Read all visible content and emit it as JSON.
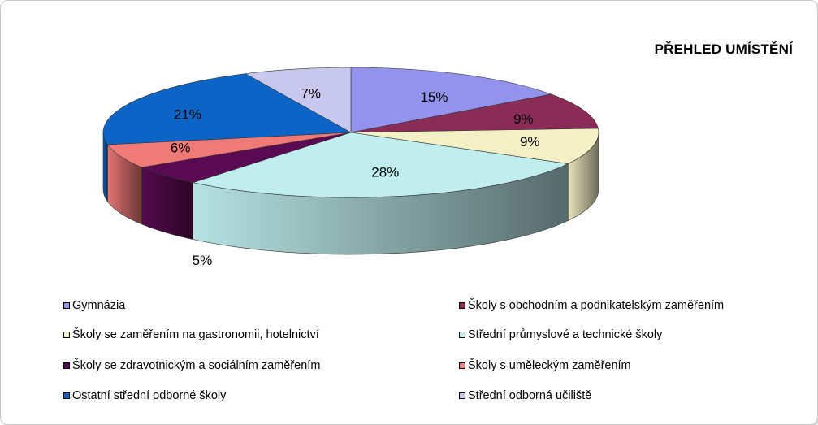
{
  "chart_data": {
    "type": "pie",
    "title": "PŘEHLED UMÍSTĚNÍ",
    "categories": [
      "Gymnázia",
      "Školy s obchodním a podnikatelským zaměřením",
      "Školy se zaměřením na gastronomii, hotelnictví",
      "Střední průmyslové a technické školy",
      "Školy se zdravotnickým a sociálním zaměřením",
      "Školy s uměleckým zaměřením",
      "Ostatní střední odborné školy",
      "Střední odborná učiliště"
    ],
    "values": [
      15,
      9,
      9,
      28,
      5,
      6,
      21,
      7
    ],
    "data_labels": [
      "15%",
      "9%",
      "9%",
      "28%",
      "5%",
      "6%",
      "21%",
      "7%"
    ],
    "colors": [
      "#9393ee",
      "#8b2c57",
      "#f2f0c4",
      "#c0eeee",
      "#5a0a52",
      "#ef7a78",
      "#0b64c6",
      "#c8c8ef"
    ],
    "legend_position": "bottom"
  }
}
